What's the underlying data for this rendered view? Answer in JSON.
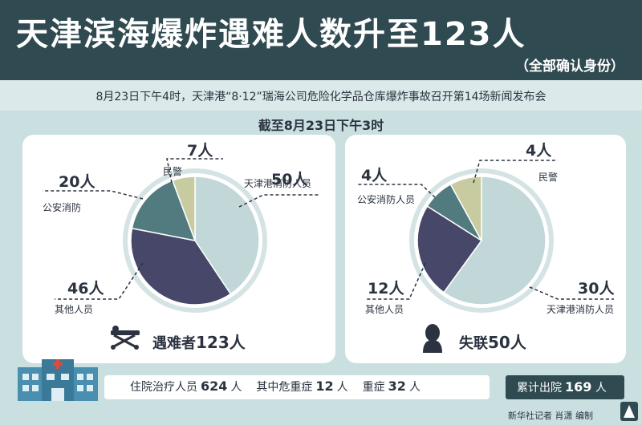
{
  "header": {
    "title": "天津滨海爆炸遇难人数升至123人",
    "subtitle": "（全部确认身份）"
  },
  "intro": "8月23日下午4时，天津港“8·12”瑞海公司危险化学品仓库爆炸事故召开第14场新闻发布会",
  "as_of": "截至8月23日下午3时",
  "colors": {
    "light_blue": "#c2d7d8",
    "navy": "#47476a",
    "teal": "#527b80",
    "khaki": "#c8cb9f",
    "dark": "#2f4a50"
  },
  "icons": {
    "left": "stretcher-icon",
    "right": "person-silhouette-icon",
    "hospital": "hospital-icon",
    "logo": "xinhua-logo-icon"
  },
  "chart_data": [
    {
      "type": "pie",
      "total_label": "遇难者",
      "total_value": "123人",
      "slices": [
        {
          "label": "天津港消防人员",
          "value": 50,
          "value_text": "50人",
          "color": "#c2d7d8"
        },
        {
          "label": "其他人员",
          "value": 46,
          "value_text": "46人",
          "color": "#47476a"
        },
        {
          "label": "公安消防",
          "value": 20,
          "value_text": "20人",
          "color": "#527b80"
        },
        {
          "label": "民警",
          "value": 7,
          "value_text": "7人",
          "color": "#c8cb9f"
        }
      ]
    },
    {
      "type": "pie",
      "total_label": "失联",
      "total_value": "50人",
      "slices": [
        {
          "label": "天津港消防人员",
          "value": 30,
          "value_text": "30人",
          "color": "#c2d7d8"
        },
        {
          "label": "其他人员",
          "value": 12,
          "value_text": "12人",
          "color": "#47476a"
        },
        {
          "label": "公安消防人员",
          "value": 4,
          "value_text": "4人",
          "color": "#527b80"
        },
        {
          "label": "民警",
          "value": 4,
          "value_text": "4人",
          "color": "#c8cb9f"
        }
      ]
    }
  ],
  "stats": {
    "hospitalized_label": "住院治疗人员",
    "hospitalized_value": "624",
    "unit": "人",
    "critical_label": "其中危重症",
    "critical_value": "12",
    "serious_label": "重症",
    "serious_value": "32",
    "discharged_label": "累计出院",
    "discharged_value": "169"
  },
  "credit": "新华社记者 肖潇 编制"
}
